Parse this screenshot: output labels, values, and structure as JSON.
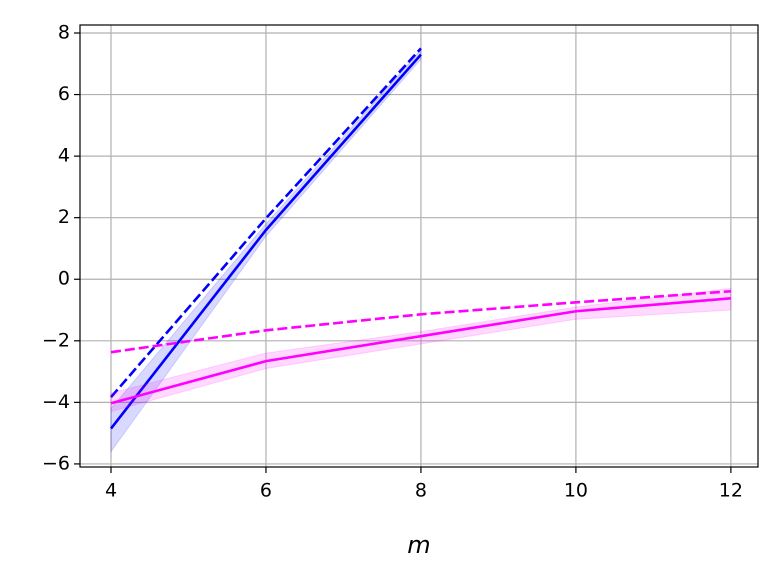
{
  "chart_data": {
    "type": "line",
    "xlabel": "m",
    "xlim": [
      3.6,
      12.35
    ],
    "ylim": [
      -6.1,
      8.26
    ],
    "xticks": [
      4,
      6,
      8,
      10,
      12
    ],
    "yticks": [
      8,
      6,
      4,
      2,
      0,
      {
        "value": -2,
        "label": "−2"
      },
      {
        "value": -4,
        "label": "−4"
      },
      {
        "value": -6,
        "label": "−6"
      }
    ],
    "grid": true,
    "series": [
      {
        "color": "#0000ff",
        "linestyle": "solid",
        "x": [
          4,
          6,
          8
        ],
        "values": [
          -4.85,
          1.6,
          7.3
        ],
        "lower": [
          -5.6,
          1.4,
          7.15
        ],
        "upper": [
          -4.2,
          1.8,
          7.45
        ]
      },
      {
        "color": "#0000ff",
        "linestyle": "dashed",
        "x": [
          4,
          6,
          8
        ],
        "values": [
          -3.83,
          1.98,
          7.5
        ]
      },
      {
        "color": "#ff00ff",
        "linestyle": "solid",
        "x": [
          4,
          6,
          8,
          10,
          12
        ],
        "values": [
          -4.03,
          -2.66,
          -1.85,
          -1.04,
          -0.62
        ],
        "lower": [
          -4.3,
          -2.9,
          -2.1,
          -1.3,
          -1.0
        ],
        "upper": [
          -3.7,
          -2.4,
          -1.7,
          -0.9,
          -0.3
        ]
      },
      {
        "color": "#ff00ff",
        "linestyle": "dashed",
        "x": [
          4,
          6,
          8,
          10,
          12
        ],
        "values": [
          -2.37,
          -1.66,
          -1.14,
          -0.75,
          -0.39
        ]
      }
    ]
  }
}
